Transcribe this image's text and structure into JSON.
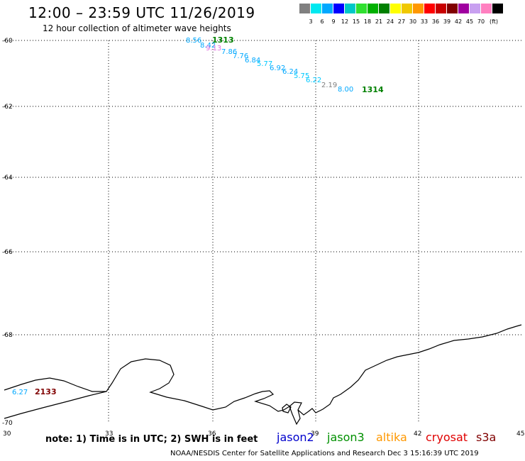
{
  "header": {
    "title": "12:00 – 23:59 UTC 11/26/2019",
    "subtitle": "12 hour collection of altimeter wave heights"
  },
  "legend": {
    "colors": [
      "#808080",
      "#00e8f0",
      "#00a8ff",
      "#0000ff",
      "#00c8c8",
      "#30e030",
      "#00b000",
      "#008000",
      "#ffff00",
      "#f0c800",
      "#ff9800",
      "#ff0000",
      "#c80000",
      "#800000",
      "#a000a0",
      "#c8a0f0",
      "#ff80c0",
      "#000000"
    ],
    "ticks": [
      "3",
      "6",
      "9",
      "12",
      "15",
      "18",
      "21",
      "24",
      "27",
      "30",
      "33",
      "36",
      "39",
      "42",
      "45",
      "70"
    ],
    "unit": "(ft)"
  },
  "axes": {
    "lon_ticks": [
      "30",
      "33",
      "36",
      "39",
      "42",
      "45"
    ],
    "lat_ticks": [
      "-60",
      "-62",
      "-64",
      "-66",
      "-68",
      "-70"
    ]
  },
  "observations": [
    {
      "value": "8.56",
      "color": "#00a8ff"
    },
    {
      "value": "8.42",
      "color": "#00a8ff"
    },
    {
      "value": "9.13",
      "color": "#e070e0"
    },
    {
      "value": "7.86",
      "color": "#00a8ff"
    },
    {
      "value": "7.76",
      "color": "#00a8ff"
    },
    {
      "value": "6.84",
      "color": "#00a8ff"
    },
    {
      "value": "5.77",
      "color": "#00c8ff"
    },
    {
      "value": "6.92",
      "color": "#00a8ff"
    },
    {
      "value": "6.24",
      "color": "#00a8ff"
    },
    {
      "value": "5.75",
      "color": "#00c8ff"
    },
    {
      "value": "6.22",
      "color": "#00c8ff"
    },
    {
      "value": "2.19",
      "color": "#808080"
    },
    {
      "value": "8.00",
      "color": "#00a8ff"
    },
    {
      "value": "6.27",
      "color": "#00a8ff"
    }
  ],
  "passes": [
    {
      "label": "1313",
      "color": "#008000"
    },
    {
      "label": "1314",
      "color": "#008000"
    },
    {
      "label": "2133",
      "color": "#800000"
    }
  ],
  "note": "note: 1) Time is in UTC; 2) SWH is in feet",
  "satellites": [
    {
      "name": "jason2",
      "color": "#0000cc"
    },
    {
      "name": "jason3",
      "color": "#009000"
    },
    {
      "name": "altika",
      "color": "#ff9800"
    },
    {
      "name": "cryosat",
      "color": "#e00000"
    },
    {
      "name": "s3a",
      "color": "#800000"
    }
  ],
  "credit": "NOAA/NESDIS Center for Satellite Applications and Research     Dec  3 15:16:39 UTC 2019"
}
